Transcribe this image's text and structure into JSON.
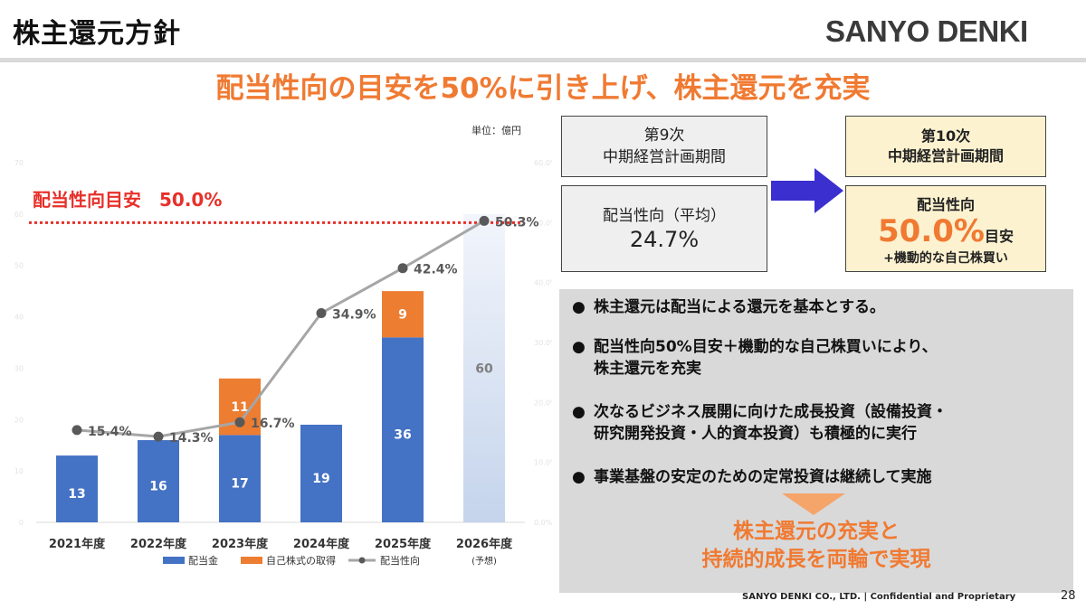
{
  "header": {
    "title": "株主還元方針",
    "logo": "SANYO DENKI",
    "headline": "配当性向の目安を50%に引き上げ、株主還元を充実"
  },
  "chart_data": {
    "type": "bar",
    "unit_label": "単位：億円",
    "categories": [
      "2021年度",
      "2022年度",
      "2023年度",
      "2024年度",
      "2025年度",
      "2026年度"
    ],
    "category_note": {
      "2026年度": "(予想)"
    },
    "series": [
      {
        "name": "配当金",
        "type": "bar",
        "color": "#4472c4",
        "values": [
          13,
          16,
          17,
          19,
          36,
          null
        ]
      },
      {
        "name": "自己株式の取得",
        "type": "bar",
        "stack": true,
        "color": "#ed7d31",
        "values": [
          null,
          null,
          11,
          null,
          9,
          null
        ]
      },
      {
        "name": "予想",
        "type": "bar",
        "style": "gradient",
        "color": "#c9d7ee",
        "values": [
          null,
          null,
          null,
          null,
          null,
          60
        ]
      },
      {
        "name": "配当性向",
        "type": "line",
        "color": "#a6a6a6",
        "axis": "right",
        "values": [
          15.4,
          14.3,
          16.7,
          34.9,
          42.4,
          50.3
        ],
        "labels": [
          "15.4%",
          "14.3%",
          "16.7%",
          "34.9%",
          "42.4%",
          "50.3%"
        ]
      }
    ],
    "ylim_left": [
      0,
      70
    ],
    "yticks_left": [
      "0",
      "10",
      "20",
      "30",
      "40",
      "50",
      "60",
      "70"
    ],
    "ylim_right": [
      0,
      60
    ],
    "yticks_right": [
      "0.0%",
      "10.0%",
      "20.0%",
      "30.0%",
      "40.0%",
      "50.0%",
      "60.0%"
    ],
    "target_line": {
      "label": "配当性向目安　50.0%",
      "value": 50.0,
      "color": "#e8302a"
    },
    "legend": [
      "配当金",
      "自己株式の取得",
      "配当性向"
    ],
    "legend_position": "bottom"
  },
  "ninth_plan": {
    "period_line1": "第9次",
    "period_line2": "中期経営計画期間",
    "payout_label": "配当性向（平均）",
    "payout_value": "24.7%"
  },
  "tenth_plan": {
    "period_line1": "第10次",
    "period_line2": "中期経営計画期間",
    "payout_label": "配当性向",
    "payout_value": "50.0%",
    "payout_suffix": "目安",
    "note": "+機動的な自己株買い"
  },
  "policy": {
    "bullets": [
      {
        "lines": [
          "株主還元は配当による還元を基本とする。"
        ]
      },
      {
        "lines": [
          "配当性向50%目安＋機動的な自己株買いにより、",
          "株主還元を充実"
        ]
      },
      {
        "lines": [
          "次なるビジネス展開に向けた成長投資（設備投資・",
          "研究開発投資・人的資本投資）も積極的に実行"
        ]
      },
      {
        "lines": [
          "事業基盤の安定のための定常投資は継続して実施"
        ]
      }
    ],
    "bullet_symbol": "●",
    "conclusion_line1": "株主還元の充実と",
    "conclusion_line2": "持続的成長を両輪で実現"
  },
  "footer": {
    "text": "SANYO DENKI CO., LTD. |  Confidential and Proprietary",
    "page": "28"
  }
}
